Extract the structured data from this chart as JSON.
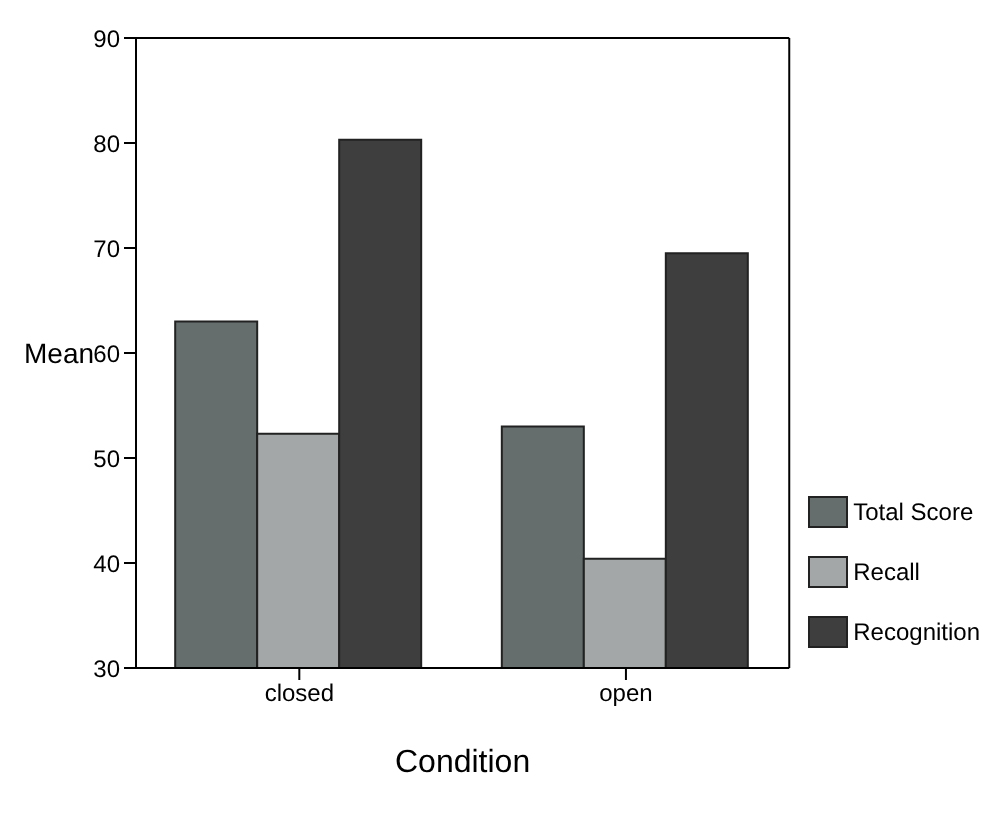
{
  "chart_data": {
    "type": "bar",
    "xlabel": "Condition",
    "ylabel": "Mean",
    "categories": [
      "closed",
      "open"
    ],
    "series": [
      {
        "name": "Total Score",
        "color": "#656d6d",
        "values": [
          63.0,
          53.0
        ]
      },
      {
        "name": "Recall",
        "color": "#a3a7a7",
        "values": [
          52.3,
          40.4
        ]
      },
      {
        "name": "Recognition",
        "color": "#3e3e3e",
        "values": [
          80.3,
          69.5
        ]
      }
    ],
    "ylim": [
      30,
      90
    ],
    "yticks": [
      30,
      40,
      50,
      60,
      70,
      80,
      90
    ],
    "grid": false,
    "legend": "right"
  }
}
